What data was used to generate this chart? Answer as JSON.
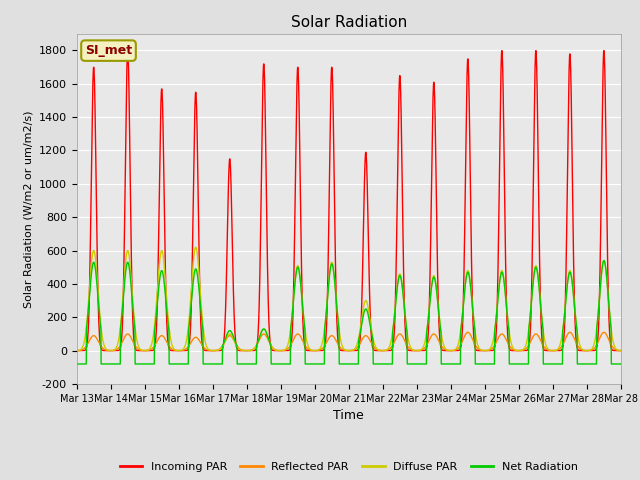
{
  "title": "Solar Radiation",
  "xlabel": "Time",
  "ylabel": "Solar Radiation (W/m2 or um/m2/s)",
  "ylim": [
    -200,
    1900
  ],
  "yticks": [
    -200,
    0,
    200,
    400,
    600,
    800,
    1000,
    1200,
    1400,
    1600,
    1800
  ],
  "legend_label": "SI_met",
  "days": [
    "Mar 13",
    "Mar 14",
    "Mar 15",
    "Mar 16",
    "Mar 17",
    "Mar 18",
    "Mar 19",
    "Mar 20",
    "Mar 21",
    "Mar 22",
    "Mar 23",
    "Mar 24",
    "Mar 25",
    "Mar 26",
    "Mar 27",
    "Mar 28"
  ],
  "incoming_peaks": [
    1700,
    1800,
    1570,
    1550,
    1150,
    1720,
    1700,
    1700,
    1190,
    1650,
    1610,
    1750,
    1800,
    1800,
    1780,
    1800
  ],
  "reflected_peaks": [
    90,
    100,
    90,
    80,
    90,
    100,
    100,
    90,
    90,
    100,
    100,
    110,
    100,
    100,
    110,
    110
  ],
  "diffuse_peaks": [
    600,
    600,
    600,
    620,
    100,
    130,
    510,
    530,
    300,
    460,
    450,
    480,
    480,
    510,
    480,
    540
  ],
  "net_peaks": [
    530,
    530,
    480,
    490,
    120,
    130,
    500,
    520,
    250,
    450,
    440,
    470,
    470,
    500,
    470,
    540
  ],
  "net_night": -80,
  "colors": {
    "incoming": "#ff0000",
    "reflected": "#ff8800",
    "diffuse": "#cccc00",
    "net": "#00cc00"
  },
  "line_width": 1.0,
  "figsize": [
    6.4,
    4.8
  ],
  "dpi": 100
}
